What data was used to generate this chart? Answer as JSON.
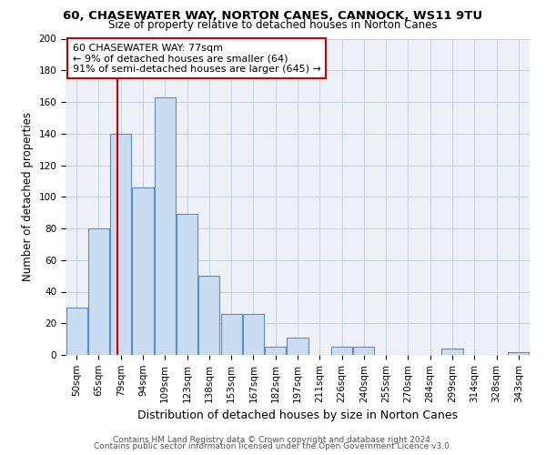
{
  "title_line1": "60, CHASEWATER WAY, NORTON CANES, CANNOCK, WS11 9TU",
  "title_line2": "Size of property relative to detached houses in Norton Canes",
  "xlabel": "Distribution of detached houses by size in Norton Canes",
  "ylabel": "Number of detached properties",
  "footnote1": "Contains HM Land Registry data © Crown copyright and database right 2024.",
  "footnote2": "Contains public sector information licensed under the Open Government Licence v3.0.",
  "categories": [
    "50sqm",
    "65sqm",
    "79sqm",
    "94sqm",
    "109sqm",
    "123sqm",
    "138sqm",
    "153sqm",
    "167sqm",
    "182sqm",
    "197sqm",
    "211sqm",
    "226sqm",
    "240sqm",
    "255sqm",
    "270sqm",
    "284sqm",
    "299sqm",
    "314sqm",
    "328sqm",
    "343sqm"
  ],
  "values": [
    30,
    80,
    140,
    106,
    163,
    89,
    50,
    26,
    26,
    5,
    11,
    0,
    5,
    5,
    0,
    0,
    0,
    4,
    0,
    0,
    2
  ],
  "bar_color": "#c9dcf0",
  "bar_edge_color": "#5b8dc8",
  "grid_color": "#c8d0dc",
  "bg_color": "#edf1f7",
  "property_line_color": "#cc0000",
  "annotation_line1": "60 CHASEWATER WAY: 77sqm",
  "annotation_line2": "← 9% of detached houses are smaller (64)",
  "annotation_line3": "91% of semi-detached houses are larger (645) →",
  "annotation_box_color": "#cc0000",
  "ylim": [
    0,
    200
  ],
  "yticks": [
    0,
    20,
    40,
    60,
    80,
    100,
    120,
    140,
    160,
    180,
    200
  ],
  "prop_bar_index": 1.85,
  "title1_fontsize": 9.5,
  "title2_fontsize": 8.5,
  "ylabel_fontsize": 8.5,
  "xlabel_fontsize": 9,
  "tick_fontsize": 7.5,
  "annot_fontsize": 8,
  "footnote_fontsize": 6.5
}
